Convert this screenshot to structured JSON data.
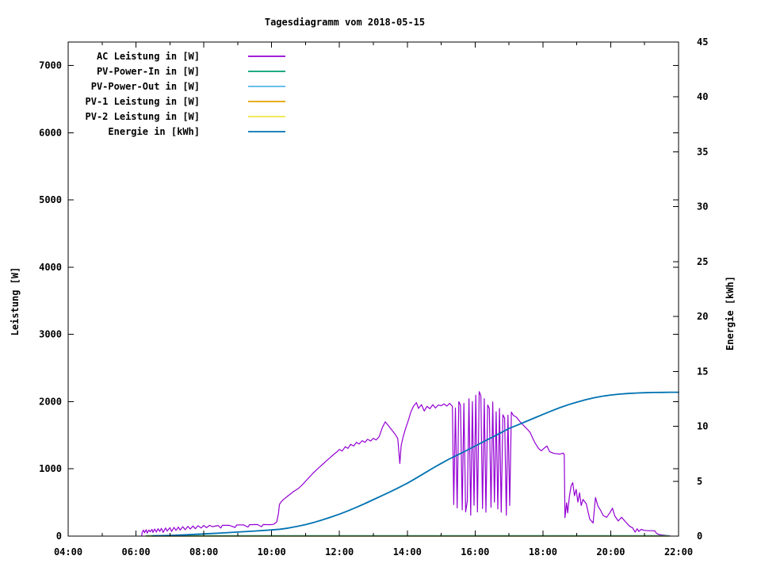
{
  "chart_data": {
    "type": "line",
    "title": "Tagesdiagramm vom 2018-05-15",
    "grid": false,
    "background": "#ffffff",
    "legend_position": "top-left-inside",
    "x_axis": {
      "kind": "time-of-day",
      "range_hours": [
        4,
        22
      ],
      "major_ticks": [
        {
          "hour": 4,
          "label": "04:00"
        },
        {
          "hour": 6,
          "label": "06:00"
        },
        {
          "hour": 8,
          "label": "08:00"
        },
        {
          "hour": 10,
          "label": "10:00"
        },
        {
          "hour": 12,
          "label": "12:00"
        },
        {
          "hour": 14,
          "label": "14:00"
        },
        {
          "hour": 16,
          "label": "16:00"
        },
        {
          "hour": 18,
          "label": "18:00"
        },
        {
          "hour": 20,
          "label": "20:00"
        },
        {
          "hour": 22,
          "label": "22:00"
        }
      ],
      "minor_tick_hours": [
        5,
        7,
        9,
        11,
        13,
        15,
        17,
        19,
        21
      ]
    },
    "y_axis": {
      "label": "Leistung [W]",
      "range": [
        0,
        7350
      ],
      "ticks": [
        0,
        1000,
        2000,
        3000,
        4000,
        5000,
        6000,
        7000
      ]
    },
    "y2_axis": {
      "label": "Energie [kWh]",
      "range": [
        0,
        45
      ],
      "ticks": [
        0,
        5,
        10,
        15,
        20,
        25,
        30,
        35,
        40,
        45
      ]
    },
    "series": [
      {
        "name": "AC Leistung in [W]",
        "color": "#9400d3",
        "axis": "y1",
        "width": 1.2,
        "points": [
          [
            6.17,
            0
          ],
          [
            6.18,
            55
          ],
          [
            6.22,
            90
          ],
          [
            6.25,
            50
          ],
          [
            6.3,
            95
          ],
          [
            6.33,
            45
          ],
          [
            6.38,
            90
          ],
          [
            6.42,
            65
          ],
          [
            6.47,
            100
          ],
          [
            6.5,
            55
          ],
          [
            6.55,
            105
          ],
          [
            6.6,
            60
          ],
          [
            6.65,
            110
          ],
          [
            6.7,
            70
          ],
          [
            6.75,
            115
          ],
          [
            6.8,
            55
          ],
          [
            6.87,
            120
          ],
          [
            6.92,
            75
          ],
          [
            7.0,
            125
          ],
          [
            7.05,
            70
          ],
          [
            7.12,
            130
          ],
          [
            7.18,
            85
          ],
          [
            7.25,
            135
          ],
          [
            7.3,
            90
          ],
          [
            7.38,
            140
          ],
          [
            7.45,
            95
          ],
          [
            7.53,
            145
          ],
          [
            7.6,
            105
          ],
          [
            7.68,
            150
          ],
          [
            7.75,
            110
          ],
          [
            7.83,
            155
          ],
          [
            7.92,
            120
          ],
          [
            8.0,
            158
          ],
          [
            8.08,
            125
          ],
          [
            8.17,
            160
          ],
          [
            8.25,
            140
          ],
          [
            8.42,
            158
          ],
          [
            8.5,
            120
          ],
          [
            8.55,
            162
          ],
          [
            8.75,
            160
          ],
          [
            8.92,
            130
          ],
          [
            8.97,
            165
          ],
          [
            9.17,
            168
          ],
          [
            9.3,
            135
          ],
          [
            9.35,
            170
          ],
          [
            9.58,
            172
          ],
          [
            9.7,
            140
          ],
          [
            9.75,
            172
          ],
          [
            9.95,
            170
          ],
          [
            10.05,
            175
          ],
          [
            10.15,
            210
          ],
          [
            10.2,
            330
          ],
          [
            10.23,
            470
          ],
          [
            10.28,
            510
          ],
          [
            10.35,
            545
          ],
          [
            10.45,
            585
          ],
          [
            10.55,
            625
          ],
          [
            10.65,
            665
          ],
          [
            10.78,
            705
          ],
          [
            10.9,
            760
          ],
          [
            11.0,
            815
          ],
          [
            11.1,
            870
          ],
          [
            11.2,
            925
          ],
          [
            11.3,
            975
          ],
          [
            11.42,
            1030
          ],
          [
            11.53,
            1080
          ],
          [
            11.63,
            1125
          ],
          [
            11.73,
            1170
          ],
          [
            11.83,
            1215
          ],
          [
            11.93,
            1255
          ],
          [
            12.0,
            1290
          ],
          [
            12.08,
            1265
          ],
          [
            12.17,
            1330
          ],
          [
            12.25,
            1305
          ],
          [
            12.33,
            1365
          ],
          [
            12.42,
            1340
          ],
          [
            12.5,
            1395
          ],
          [
            12.58,
            1370
          ],
          [
            12.67,
            1420
          ],
          [
            12.75,
            1395
          ],
          [
            12.83,
            1440
          ],
          [
            12.92,
            1415
          ],
          [
            13.0,
            1455
          ],
          [
            13.08,
            1430
          ],
          [
            13.17,
            1480
          ],
          [
            13.27,
            1620
          ],
          [
            13.35,
            1700
          ],
          [
            13.45,
            1640
          ],
          [
            13.55,
            1575
          ],
          [
            13.65,
            1510
          ],
          [
            13.72,
            1450
          ],
          [
            13.78,
            1080
          ],
          [
            13.82,
            1350
          ],
          [
            13.88,
            1480
          ],
          [
            13.95,
            1600
          ],
          [
            14.03,
            1720
          ],
          [
            14.1,
            1840
          ],
          [
            14.18,
            1930
          ],
          [
            14.27,
            1985
          ],
          [
            14.33,
            1900
          ],
          [
            14.42,
            1955
          ],
          [
            14.5,
            1860
          ],
          [
            14.58,
            1930
          ],
          [
            14.67,
            1895
          ],
          [
            14.75,
            1955
          ],
          [
            14.83,
            1905
          ],
          [
            14.92,
            1950
          ],
          [
            15.0,
            1940
          ],
          [
            15.08,
            1965
          ],
          [
            15.17,
            1935
          ],
          [
            15.25,
            1975
          ],
          [
            15.33,
            1930
          ],
          [
            15.37,
            470
          ],
          [
            15.42,
            1905
          ],
          [
            15.47,
            420
          ],
          [
            15.52,
            2000
          ],
          [
            15.57,
            1950
          ],
          [
            15.62,
            390
          ],
          [
            15.67,
            1975
          ],
          [
            15.72,
            360
          ],
          [
            15.77,
            520
          ],
          [
            15.82,
            2045
          ],
          [
            15.87,
            310
          ],
          [
            15.92,
            2000
          ],
          [
            15.97,
            460
          ],
          [
            16.02,
            2095
          ],
          [
            16.07,
            360
          ],
          [
            16.12,
            2150
          ],
          [
            16.17,
            2090
          ],
          [
            16.22,
            410
          ],
          [
            16.27,
            2045
          ],
          [
            16.32,
            355
          ],
          [
            16.37,
            1950
          ],
          [
            16.42,
            1900
          ],
          [
            16.47,
            430
          ],
          [
            16.52,
            1995
          ],
          [
            16.57,
            505
          ],
          [
            16.62,
            1850
          ],
          [
            16.67,
            405
          ],
          [
            16.72,
            1900
          ],
          [
            16.77,
            355
          ],
          [
            16.82,
            1805
          ],
          [
            16.87,
            1755
          ],
          [
            16.92,
            310
          ],
          [
            16.97,
            1800
          ],
          [
            17.02,
            455
          ],
          [
            17.07,
            1845
          ],
          [
            17.13,
            1795
          ],
          [
            17.22,
            1770
          ],
          [
            17.32,
            1705
          ],
          [
            17.42,
            1650
          ],
          [
            17.52,
            1600
          ],
          [
            17.62,
            1545
          ],
          [
            17.7,
            1455
          ],
          [
            17.77,
            1385
          ],
          [
            17.87,
            1305
          ],
          [
            17.95,
            1270
          ],
          [
            18.03,
            1305
          ],
          [
            18.12,
            1340
          ],
          [
            18.2,
            1255
          ],
          [
            18.32,
            1230
          ],
          [
            18.5,
            1220
          ],
          [
            18.6,
            1235
          ],
          [
            18.63,
            1210
          ],
          [
            18.65,
            275
          ],
          [
            18.7,
            495
          ],
          [
            18.73,
            345
          ],
          [
            18.78,
            590
          ],
          [
            18.83,
            745
          ],
          [
            18.88,
            795
          ],
          [
            18.93,
            600
          ],
          [
            18.98,
            695
          ],
          [
            19.03,
            505
          ],
          [
            19.08,
            645
          ],
          [
            19.13,
            455
          ],
          [
            19.18,
            545
          ],
          [
            19.28,
            480
          ],
          [
            19.38,
            255
          ],
          [
            19.48,
            195
          ],
          [
            19.55,
            575
          ],
          [
            19.62,
            450
          ],
          [
            19.7,
            385
          ],
          [
            19.78,
            305
          ],
          [
            19.88,
            280
          ],
          [
            19.97,
            345
          ],
          [
            20.05,
            415
          ],
          [
            20.12,
            300
          ],
          [
            20.22,
            225
          ],
          [
            20.32,
            280
          ],
          [
            20.45,
            205
          ],
          [
            20.55,
            150
          ],
          [
            20.65,
            120
          ],
          [
            20.72,
            60
          ],
          [
            20.78,
            110
          ],
          [
            20.83,
            70
          ],
          [
            20.9,
            100
          ],
          [
            21.0,
            85
          ],
          [
            21.1,
            80
          ],
          [
            21.22,
            80
          ],
          [
            21.3,
            78
          ],
          [
            21.35,
            40
          ],
          [
            21.42,
            25
          ],
          [
            21.5,
            18
          ],
          [
            21.6,
            12
          ],
          [
            21.7,
            6
          ],
          [
            21.75,
            2
          ]
        ]
      },
      {
        "name": "PV-Power-In in [W]",
        "color": "#009e73",
        "axis": "y1",
        "width": 1.2,
        "points": [
          [
            6.3,
            8
          ],
          [
            21.7,
            8
          ]
        ]
      },
      {
        "name": "PV-Power-Out in [W]",
        "color": "#56b4e9",
        "axis": "y1",
        "width": 1.2,
        "points": [
          [
            6.3,
            0
          ],
          [
            21.7,
            0
          ]
        ]
      },
      {
        "name": "PV-1 Leistung in [W]",
        "color": "#e69f00",
        "axis": "y1",
        "width": 1.2,
        "points": [
          [
            6.3,
            0
          ],
          [
            21.7,
            0
          ]
        ]
      },
      {
        "name": "PV-2 Leistung in [W]",
        "color": "#f0e442",
        "axis": "y1",
        "width": 1.2,
        "points": [
          [
            6.3,
            0
          ],
          [
            21.7,
            0
          ]
        ]
      },
      {
        "name": "Energie in [kWh]",
        "color": "#0072b2",
        "axis": "y2",
        "width": 1.8,
        "points": [
          [
            6.5,
            0.02
          ],
          [
            7.0,
            0.06
          ],
          [
            7.5,
            0.12
          ],
          [
            8.0,
            0.2
          ],
          [
            8.5,
            0.28
          ],
          [
            9.0,
            0.37
          ],
          [
            9.5,
            0.46
          ],
          [
            10.0,
            0.56
          ],
          [
            10.25,
            0.63
          ],
          [
            10.5,
            0.74
          ],
          [
            10.75,
            0.88
          ],
          [
            11.0,
            1.05
          ],
          [
            11.25,
            1.25
          ],
          [
            11.5,
            1.48
          ],
          [
            11.75,
            1.73
          ],
          [
            12.0,
            2.0
          ],
          [
            12.25,
            2.3
          ],
          [
            12.5,
            2.62
          ],
          [
            12.75,
            2.96
          ],
          [
            13.0,
            3.32
          ],
          [
            13.25,
            3.68
          ],
          [
            13.5,
            4.04
          ],
          [
            13.75,
            4.42
          ],
          [
            14.0,
            4.82
          ],
          [
            14.25,
            5.26
          ],
          [
            14.5,
            5.72
          ],
          [
            14.75,
            6.18
          ],
          [
            15.0,
            6.62
          ],
          [
            15.25,
            7.04
          ],
          [
            15.5,
            7.42
          ],
          [
            15.75,
            7.8
          ],
          [
            16.0,
            8.2
          ],
          [
            16.25,
            8.6
          ],
          [
            16.5,
            9.0
          ],
          [
            16.75,
            9.4
          ],
          [
            17.0,
            9.8
          ],
          [
            17.25,
            10.12
          ],
          [
            17.5,
            10.44
          ],
          [
            17.75,
            10.76
          ],
          [
            18.0,
            11.08
          ],
          [
            18.25,
            11.4
          ],
          [
            18.5,
            11.7
          ],
          [
            18.75,
            11.97
          ],
          [
            19.0,
            12.2
          ],
          [
            19.25,
            12.42
          ],
          [
            19.5,
            12.6
          ],
          [
            19.75,
            12.74
          ],
          [
            20.0,
            12.85
          ],
          [
            20.25,
            12.93
          ],
          [
            20.5,
            12.99
          ],
          [
            20.75,
            13.03
          ],
          [
            21.0,
            13.06
          ],
          [
            21.25,
            13.08
          ],
          [
            21.5,
            13.09
          ],
          [
            21.75,
            13.1
          ],
          [
            22.0,
            13.1
          ]
        ]
      }
    ]
  }
}
